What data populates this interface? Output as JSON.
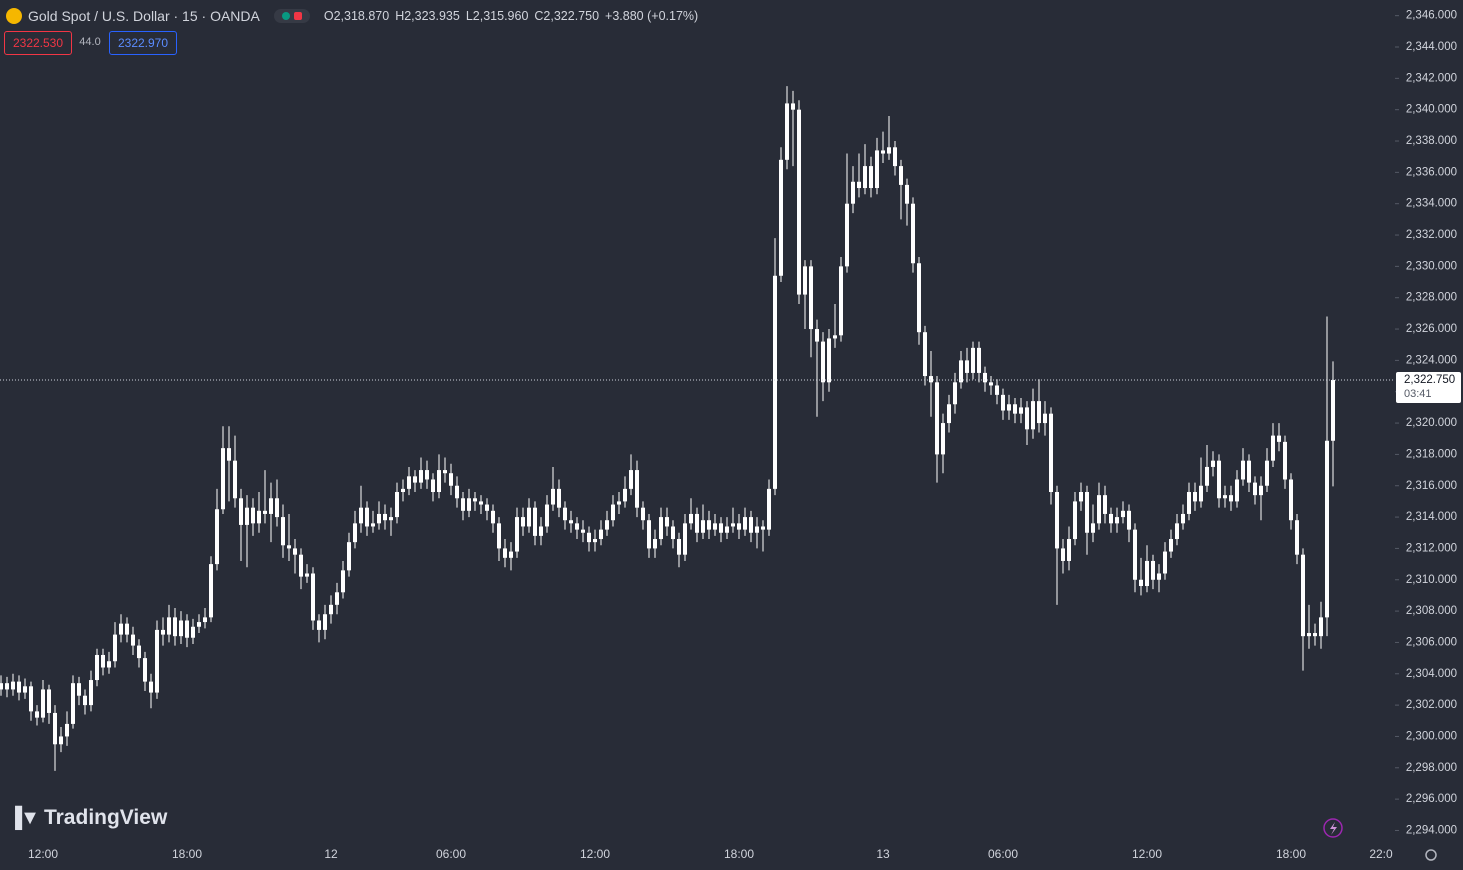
{
  "chart_data": {
    "type": "candlestick",
    "title": "Gold Spot / U.S. Dollar · 15 · OANDA",
    "ohlc_labels": [
      "O2,318.870",
      "H2,323.935",
      "L2,315.960",
      "C2,322.750"
    ],
    "change_label": "+3.880 (+0.17%)",
    "sell_price": "2322.530",
    "spread": "44.0",
    "buy_price": "2322.970",
    "last_price": {
      "value": 2322.75,
      "label": "2,322.750"
    },
    "countdown": "03:41",
    "watermark": "TradingView",
    "color": "#ffffff",
    "ylim": [
      2293.2,
      2347.0
    ],
    "yticks": [
      {
        "value": 2294,
        "label": "2,294.000"
      },
      {
        "value": 2296,
        "label": "2,296.000"
      },
      {
        "value": 2298,
        "label": "2,298.000"
      },
      {
        "value": 2300,
        "label": "2,300.000"
      },
      {
        "value": 2302,
        "label": "2,302.000"
      },
      {
        "value": 2304,
        "label": "2,304.000"
      },
      {
        "value": 2306,
        "label": "2,306.000"
      },
      {
        "value": 2308,
        "label": "2,308.000"
      },
      {
        "value": 2310,
        "label": "2,310.000"
      },
      {
        "value": 2312,
        "label": "2,312.000"
      },
      {
        "value": 2314,
        "label": "2,314.000"
      },
      {
        "value": 2316,
        "label": "2,316.000"
      },
      {
        "value": 2318,
        "label": "2,318.000"
      },
      {
        "value": 2320,
        "label": "2,320.000"
      },
      {
        "value": 2322,
        "label": "2,322.000"
      },
      {
        "value": 2324,
        "label": "2,324.000"
      },
      {
        "value": 2326,
        "label": "2,326.000"
      },
      {
        "value": 2328,
        "label": "2,328.000"
      },
      {
        "value": 2330,
        "label": "2,330.000"
      },
      {
        "value": 2332,
        "label": "2,332.000"
      },
      {
        "value": 2334,
        "label": "2,334.000"
      },
      {
        "value": 2336,
        "label": "2,336.000"
      },
      {
        "value": 2338,
        "label": "2,338.000"
      },
      {
        "value": 2340,
        "label": "2,340.000"
      },
      {
        "value": 2342,
        "label": "2,342.000"
      },
      {
        "value": 2344,
        "label": "2,344.000"
      },
      {
        "value": 2346,
        "label": "2,346.000"
      }
    ],
    "categories": [
      null,
      null,
      null,
      null,
      null,
      null,
      null,
      "12:00",
      null,
      null,
      null,
      null,
      null,
      null,
      null,
      null,
      null,
      null,
      null,
      null,
      null,
      null,
      null,
      null,
      null,
      null,
      null,
      null,
      null,
      null,
      null,
      "18:00",
      null,
      null,
      null,
      null,
      null,
      null,
      null,
      null,
      null,
      null,
      null,
      null,
      null,
      null,
      null,
      null,
      null,
      null,
      null,
      null,
      null,
      null,
      null,
      "12",
      null,
      null,
      null,
      null,
      null,
      null,
      null,
      null,
      null,
      null,
      null,
      null,
      null,
      null,
      null,
      null,
      null,
      null,
      null,
      "06:00",
      null,
      null,
      null,
      null,
      null,
      null,
      null,
      null,
      null,
      null,
      null,
      null,
      null,
      null,
      null,
      null,
      null,
      null,
      null,
      null,
      null,
      null,
      null,
      "12:00",
      null,
      null,
      null,
      null,
      null,
      null,
      null,
      null,
      null,
      null,
      null,
      null,
      null,
      null,
      null,
      null,
      null,
      null,
      null,
      null,
      null,
      null,
      null,
      "18:00",
      null,
      null,
      null,
      null,
      null,
      null,
      null,
      null,
      null,
      null,
      null,
      null,
      null,
      null,
      null,
      null,
      null,
      null,
      null,
      null,
      null,
      null,
      null,
      "13",
      null,
      null,
      null,
      null,
      null,
      null,
      null,
      null,
      null,
      null,
      null,
      null,
      null,
      null,
      null,
      null,
      null,
      null,
      null,
      "06:00",
      null,
      null,
      null,
      null,
      null,
      null,
      null,
      null,
      null,
      null,
      null,
      null,
      null,
      null,
      null,
      null,
      null,
      null,
      null,
      null,
      null,
      null,
      null,
      "12:00",
      null,
      null,
      null,
      null,
      null,
      null,
      null,
      null,
      null,
      null,
      null,
      null,
      null,
      null,
      null,
      null,
      null,
      null,
      null,
      null,
      null,
      null,
      null,
      "18:00",
      null,
      null,
      null,
      null,
      null,
      null,
      null,
      null,
      null,
      null,
      null,
      null,
      null,
      null,
      "22:0"
    ],
    "open": [
      2303.0,
      2303.4,
      2303.0,
      2303.5,
      2302.8,
      2303.2,
      2301.6,
      2301.2,
      2303.0,
      2301.5,
      2299.5,
      2300.0,
      2300.8,
      2303.4,
      2302.6,
      2302.0,
      2303.6,
      2305.2,
      2304.4,
      2304.8,
      2306.5,
      2307.2,
      2306.5,
      2305.8,
      2305.0,
      2303.5,
      2302.8,
      2306.8,
      2306.5,
      2307.6,
      2306.4,
      2307.4,
      2306.3,
      2307.0,
      2307.3,
      2307.6,
      2311.0,
      2314.5,
      2318.4,
      2317.6,
      2315.2,
      2313.5,
      2314.6,
      2313.6,
      2314.4,
      2314.2,
      2315.2,
      2314.0,
      2312.2,
      2312.0,
      2311.6,
      2310.2,
      2310.4,
      2307.4,
      2306.8,
      2307.8,
      2308.4,
      2309.2,
      2310.6,
      2312.4,
      2313.6,
      2314.6,
      2313.4,
      2313.6,
      2314.2,
      2313.8,
      2314.0,
      2315.6,
      2315.8,
      2316.6,
      2316.2,
      2317.0,
      2316.4,
      2315.6,
      2317.0,
      2316.8,
      2316.0,
      2315.2,
      2314.4,
      2315.2,
      2315.0,
      2314.8,
      2314.4,
      2313.6,
      2312.0,
      2311.4,
      2311.8,
      2314.0,
      2313.4,
      2314.6,
      2312.8,
      2313.4,
      2314.8,
      2315.8,
      2314.6,
      2313.8,
      2313.6,
      2313.2,
      2313.0,
      2312.4,
      2312.6,
      2313.2,
      2313.8,
      2314.8,
      2315.0,
      2315.8,
      2317.0,
      2314.6,
      2313.8,
      2312.0,
      2312.6,
      2314.0,
      2313.4,
      2312.6,
      2311.6,
      2313.6,
      2314.2,
      2313.0,
      2313.8,
      2313.2,
      2313.6,
      2313.0,
      2313.4,
      2313.6,
      2313.2,
      2314.0,
      2313.0,
      2313.4,
      2313.2,
      2315.8,
      2329.4,
      2336.8,
      2340.4,
      2340.0,
      2328.2,
      2330.0,
      2326.0,
      2325.2,
      2322.6,
      2325.4,
      2325.6,
      2330.0,
      2334.0,
      2335.4,
      2335.0,
      2336.4,
      2335.0,
      2337.4,
      2337.2,
      2337.6,
      2336.4,
      2335.2,
      2334.0,
      2330.2,
      2325.8,
      2323.0,
      2322.6,
      2318.0,
      2320.0,
      2321.2,
      2322.6,
      2324.0,
      2323.2,
      2324.8,
      2323.2,
      2322.6,
      2322.4,
      2321.8,
      2320.8,
      2321.2,
      2320.6,
      2321.0,
      2319.6,
      2321.4,
      2320.0,
      2320.6,
      2315.6,
      2312.0,
      2311.2,
      2312.6,
      2315.0,
      2315.6,
      2313.0,
      2313.6,
      2315.4,
      2314.2,
      2313.6,
      2314.0,
      2314.4,
      2313.2,
      2310.0,
      2309.6,
      2311.2,
      2310.0,
      2310.4,
      2311.8,
      2312.6,
      2313.6,
      2314.2,
      2315.6,
      2315.0,
      2316.0,
      2317.2,
      2317.6,
      2315.2,
      2315.4,
      2315.0,
      2316.4,
      2317.6,
      2316.2,
      2315.4,
      2316.0,
      2317.6,
      2319.2,
      2318.8,
      2316.4,
      2313.8,
      2311.6,
      2306.4,
      2306.6,
      2306.4,
      2307.6,
      2318.87,
      null,
      null,
      null,
      null,
      null,
      null,
      null,
      null
    ],
    "high": [
      2303.9,
      2303.8,
      2304.0,
      2303.9,
      2303.7,
      2303.5,
      2302.0,
      2303.6,
      2303.3,
      2302.0,
      2300.6,
      2301.6,
      2303.9,
      2303.8,
      2303.0,
      2304.2,
      2305.6,
      2305.6,
      2305.4,
      2307.3,
      2307.8,
      2307.6,
      2307.0,
      2306.2,
      2305.4,
      2304.0,
      2307.4,
      2307.6,
      2308.4,
      2308.2,
      2308.0,
      2307.8,
      2307.5,
      2307.8,
      2308.2,
      2311.5,
      2315.8,
      2319.8,
      2319.8,
      2319.2,
      2315.8,
      2315.4,
      2315.2,
      2315.6,
      2317.0,
      2316.2,
      2316.4,
      2314.8,
      2314.2,
      2312.6,
      2312.0,
      2311.0,
      2310.8,
      2307.8,
      2308.4,
      2309.0,
      2309.8,
      2311.2,
      2313.0,
      2314.4,
      2316.0,
      2315.0,
      2314.4,
      2315.0,
      2314.8,
      2314.6,
      2316.2,
      2316.4,
      2317.2,
      2317.0,
      2317.8,
      2317.6,
      2316.8,
      2318.0,
      2317.8,
      2317.4,
      2316.6,
      2315.6,
      2315.8,
      2315.6,
      2315.4,
      2315.2,
      2314.8,
      2314.0,
      2312.6,
      2312.4,
      2314.6,
      2314.6,
      2315.2,
      2315.0,
      2314.0,
      2315.4,
      2317.2,
      2316.4,
      2315.0,
      2314.4,
      2314.0,
      2313.8,
      2313.4,
      2313.2,
      2313.8,
      2314.4,
      2315.4,
      2315.6,
      2316.6,
      2318.0,
      2317.6,
      2315.0,
      2314.2,
      2313.2,
      2314.6,
      2314.6,
      2313.8,
      2313.0,
      2314.2,
      2315.2,
      2314.6,
      2314.8,
      2314.4,
      2314.2,
      2314.0,
      2314.0,
      2314.6,
      2314.2,
      2314.6,
      2314.4,
      2314.0,
      2313.8,
      2316.4,
      2331.8,
      2337.6,
      2341.5,
      2341.2,
      2340.6,
      2330.4,
      2330.4,
      2326.6,
      2325.8,
      2326.0,
      2327.6,
      2330.6,
      2337.2,
      2336.4,
      2337.2,
      2337.8,
      2337.0,
      2338.2,
      2338.6,
      2339.6,
      2338.0,
      2336.8,
      2335.6,
      2334.4,
      2330.6,
      2326.2,
      2324.6,
      2323.0,
      2320.6,
      2321.8,
      2323.2,
      2324.6,
      2324.8,
      2325.2,
      2325.2,
      2323.6,
      2323.0,
      2322.8,
      2322.2,
      2321.8,
      2321.6,
      2321.6,
      2321.4,
      2322.2,
      2322.8,
      2321.4,
      2321.0,
      2316.0,
      2312.6,
      2313.4,
      2315.6,
      2316.2,
      2316.0,
      2314.8,
      2316.2,
      2316.0,
      2314.6,
      2314.6,
      2315.0,
      2314.8,
      2313.6,
      2311.4,
      2312.2,
      2311.6,
      2311.0,
      2312.4,
      2313.2,
      2314.2,
      2314.8,
      2316.2,
      2316.2,
      2317.8,
      2318.6,
      2318.2,
      2318.0,
      2316.0,
      2316.0,
      2317.0,
      2318.4,
      2318.0,
      2316.6,
      2316.6,
      2318.4,
      2320.0,
      2320.0,
      2319.2,
      2316.8,
      2314.2,
      2312.0,
      2308.4,
      2307.2,
      2308.6,
      2326.8,
      2323.935,
      null,
      null,
      null,
      null,
      null,
      null,
      null,
      null
    ],
    "low": [
      2302.6,
      2302.5,
      2302.6,
      2302.3,
      2302.4,
      2301.0,
      2300.7,
      2300.9,
      2300.8,
      2297.8,
      2299.0,
      2299.4,
      2300.5,
      2302.0,
      2301.4,
      2301.6,
      2303.2,
      2303.9,
      2304.0,
      2304.4,
      2306.0,
      2306.0,
      2305.2,
      2304.4,
      2302.9,
      2301.8,
      2302.4,
      2305.8,
      2306.0,
      2305.8,
      2305.9,
      2305.7,
      2305.9,
      2306.6,
      2306.9,
      2307.3,
      2310.6,
      2314.2,
      2315.0,
      2314.6,
      2311.2,
      2310.8,
      2312.8,
      2313.0,
      2313.6,
      2312.4,
      2313.4,
      2311.4,
      2311.2,
      2310.4,
      2309.4,
      2309.8,
      2306.8,
      2306.0,
      2306.2,
      2307.2,
      2307.8,
      2308.8,
      2310.2,
      2312.0,
      2313.0,
      2312.8,
      2313.0,
      2313.2,
      2313.2,
      2312.8,
      2313.6,
      2315.0,
      2315.4,
      2315.6,
      2315.8,
      2315.8,
      2315.0,
      2315.2,
      2316.2,
      2315.4,
      2314.6,
      2313.8,
      2314.0,
      2314.4,
      2314.2,
      2313.8,
      2313.0,
      2311.2,
      2310.8,
      2310.6,
      2311.4,
      2312.8,
      2313.0,
      2312.2,
      2312.2,
      2313.0,
      2314.4,
      2314.0,
      2313.2,
      2313.0,
      2312.6,
      2312.4,
      2311.8,
      2311.8,
      2312.2,
      2312.8,
      2313.4,
      2314.2,
      2314.6,
      2315.4,
      2314.0,
      2313.2,
      2311.4,
      2311.4,
      2312.2,
      2312.8,
      2312.0,
      2310.8,
      2311.2,
      2313.2,
      2312.4,
      2312.6,
      2312.6,
      2312.8,
      2312.4,
      2312.6,
      2313.0,
      2312.6,
      2312.8,
      2312.4,
      2312.0,
      2311.8,
      2312.8,
      2315.4,
      2329.0,
      2336.2,
      2336.4,
      2327.6,
      2326.0,
      2324.2,
      2320.4,
      2321.4,
      2322.0,
      2324.8,
      2325.2,
      2329.6,
      2333.4,
      2334.4,
      2334.6,
      2334.4,
      2334.6,
      2336.6,
      2336.8,
      2335.8,
      2333.0,
      2332.6,
      2329.6,
      2325.0,
      2322.4,
      2320.4,
      2316.2,
      2316.8,
      2319.4,
      2320.6,
      2322.2,
      2322.6,
      2322.8,
      2322.6,
      2322.0,
      2321.8,
      2321.2,
      2320.2,
      2320.2,
      2320.0,
      2320.0,
      2318.6,
      2319.0,
      2319.4,
      2319.2,
      2314.8,
      2308.4,
      2310.4,
      2310.6,
      2312.2,
      2314.4,
      2311.6,
      2312.4,
      2313.2,
      2313.6,
      2313.0,
      2313.0,
      2313.6,
      2312.4,
      2309.2,
      2309.0,
      2309.2,
      2309.4,
      2309.2,
      2310.0,
      2311.4,
      2312.2,
      2313.2,
      2313.8,
      2314.4,
      2314.6,
      2315.6,
      2316.6,
      2314.6,
      2314.6,
      2314.4,
      2314.6,
      2316.0,
      2315.6,
      2314.8,
      2313.8,
      2315.6,
      2317.2,
      2318.2,
      2315.8,
      2313.2,
      2311.0,
      2304.2,
      2305.6,
      2305.8,
      2305.6,
      2306.4,
      2315.96,
      null,
      null,
      null,
      null,
      null,
      null,
      null,
      null
    ],
    "close": [
      2303.4,
      2303.0,
      2303.5,
      2302.8,
      2303.2,
      2301.6,
      2301.2,
      2303.0,
      2301.5,
      2299.5,
      2300.0,
      2300.8,
      2303.4,
      2302.6,
      2302.0,
      2303.6,
      2305.2,
      2304.4,
      2304.8,
      2306.5,
      2307.2,
      2306.5,
      2305.8,
      2305.0,
      2303.5,
      2302.8,
      2306.8,
      2306.5,
      2307.6,
      2306.4,
      2307.4,
      2306.3,
      2307.0,
      2307.3,
      2307.6,
      2311.0,
      2314.5,
      2318.4,
      2317.6,
      2315.2,
      2313.5,
      2314.6,
      2313.6,
      2314.4,
      2314.2,
      2315.2,
      2314.0,
      2312.2,
      2312.0,
      2311.6,
      2310.2,
      2310.4,
      2307.4,
      2306.8,
      2307.8,
      2308.4,
      2309.2,
      2310.6,
      2312.4,
      2313.6,
      2314.6,
      2313.4,
      2313.6,
      2314.2,
      2313.8,
      2314.0,
      2315.6,
      2315.8,
      2316.6,
      2316.2,
      2317.0,
      2316.4,
      2315.6,
      2317.0,
      2316.8,
      2316.0,
      2315.2,
      2314.4,
      2315.2,
      2315.0,
      2314.8,
      2314.4,
      2313.6,
      2312.0,
      2311.4,
      2311.8,
      2314.0,
      2313.4,
      2314.6,
      2312.8,
      2313.4,
      2314.8,
      2315.8,
      2314.6,
      2313.8,
      2313.6,
      2313.2,
      2313.0,
      2312.4,
      2312.6,
      2313.2,
      2313.8,
      2314.8,
      2315.0,
      2315.8,
      2317.0,
      2314.6,
      2313.8,
      2312.0,
      2312.6,
      2314.0,
      2313.4,
      2312.6,
      2311.6,
      2313.6,
      2314.2,
      2313.0,
      2313.8,
      2313.2,
      2313.6,
      2313.0,
      2313.4,
      2313.6,
      2313.2,
      2314.0,
      2313.0,
      2313.4,
      2313.2,
      2315.8,
      2329.4,
      2336.8,
      2340.4,
      2340.0,
      2328.2,
      2330.0,
      2326.0,
      2325.2,
      2322.6,
      2325.4,
      2325.6,
      2330.0,
      2334.0,
      2335.4,
      2335.0,
      2336.4,
      2335.0,
      2337.4,
      2337.2,
      2337.6,
      2336.4,
      2335.2,
      2334.0,
      2330.2,
      2325.8,
      2323.0,
      2322.6,
      2318.0,
      2320.0,
      2321.2,
      2322.6,
      2324.0,
      2323.2,
      2324.8,
      2323.2,
      2322.6,
      2322.4,
      2321.8,
      2320.8,
      2321.2,
      2320.6,
      2321.0,
      2319.6,
      2321.4,
      2320.0,
      2320.6,
      2315.6,
      2312.0,
      2311.2,
      2312.6,
      2315.0,
      2315.6,
      2313.0,
      2313.6,
      2315.4,
      2314.2,
      2313.6,
      2314.0,
      2314.4,
      2313.2,
      2310.0,
      2309.6,
      2311.2,
      2310.0,
      2310.4,
      2311.8,
      2312.6,
      2313.6,
      2314.2,
      2315.6,
      2315.0,
      2316.0,
      2317.2,
      2317.6,
      2315.2,
      2315.4,
      2315.0,
      2316.4,
      2317.6,
      2316.2,
      2315.4,
      2316.0,
      2317.6,
      2319.2,
      2318.8,
      2316.4,
      2313.8,
      2311.6,
      2306.4,
      2306.6,
      2306.4,
      2307.6,
      2318.87,
      2322.75,
      null,
      null,
      null,
      null,
      null,
      null,
      null,
      null
    ]
  }
}
